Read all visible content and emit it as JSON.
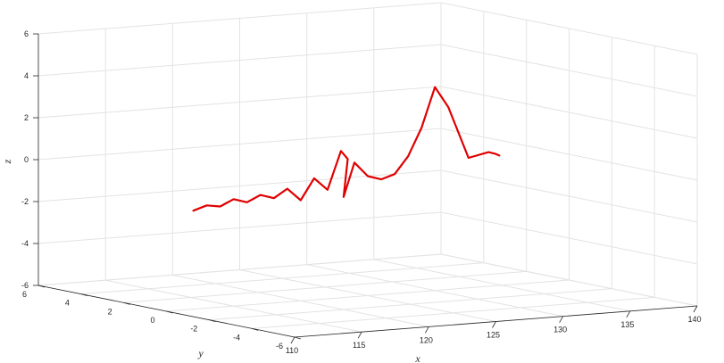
{
  "chart_data": {
    "type": "line",
    "view": "3d",
    "title": "",
    "xlabel": "x",
    "ylabel": "y",
    "zlabel": "z",
    "xlim": [
      110,
      140
    ],
    "ylim": [
      -6,
      6
    ],
    "zlim": [
      -6,
      6
    ],
    "x_ticks": [
      "110",
      "115",
      "120",
      "125",
      "130",
      "135",
      "140"
    ],
    "y_ticks": [
      "-6",
      "-4",
      "-2",
      "0",
      "2",
      "4",
      "6"
    ],
    "z_ticks": [
      "-6",
      "-4",
      "-2",
      "0",
      "2",
      "4",
      "6"
    ],
    "grid": true,
    "line_color": "#e00000",
    "series": [
      {
        "x": [
          112.0,
          113.0,
          114.0,
          115.0,
          116.0,
          117.0,
          118.0,
          119.0,
          120.0,
          121.0,
          122.0,
          123.0,
          123.5,
          123.2,
          124.0,
          125.0,
          126.0,
          127.0,
          128.0,
          129.0,
          130.0,
          131.0,
          132.5,
          134.0,
          134.5,
          134.8
        ],
        "y": [
          0,
          0,
          0,
          0,
          0,
          0,
          0,
          0,
          0,
          0,
          0,
          0,
          0,
          0,
          0,
          0,
          0,
          0,
          0,
          0,
          0,
          0,
          0,
          0,
          0,
          0
        ],
        "z": [
          -1.3,
          -1.1,
          -1.2,
          -0.9,
          -1.1,
          -0.8,
          -1.0,
          -0.6,
          -1.2,
          -0.2,
          -0.8,
          1.0,
          0.6,
          -1.2,
          0.4,
          -0.3,
          -0.5,
          -0.3,
          0.5,
          1.8,
          3.7,
          2.7,
          0.2,
          0.4,
          0.3,
          0.2
        ]
      }
    ]
  }
}
